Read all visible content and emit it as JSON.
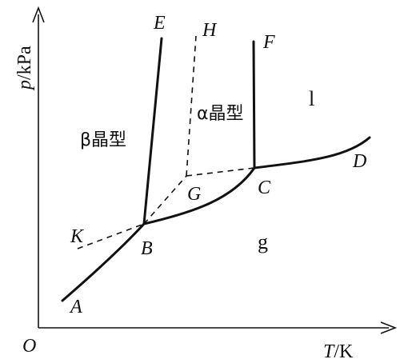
{
  "axes": {
    "y_label_italic": "p",
    "y_label_rest": "/kPa",
    "x_label_italic": "T",
    "x_label_rest": "/K",
    "origin": "O"
  },
  "points": {
    "A": "A",
    "B": "B",
    "C": "C",
    "D": "D",
    "E": "E",
    "F": "F",
    "G": "G",
    "H": "H",
    "K": "K"
  },
  "regions": {
    "beta": "β晶型",
    "alpha": "α晶型",
    "liquid": "l",
    "gas": "g"
  }
}
